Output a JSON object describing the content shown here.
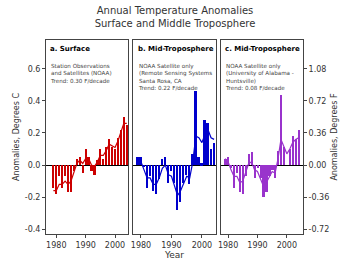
{
  "chart_data": [
    {
      "type": "bar",
      "title": "Annual Temperature Anomalies\nSurface and Middle Troposphere",
      "ylabel": "Anomalies, Degrees C",
      "x": [
        1979,
        1980,
        1981,
        1982,
        1983,
        1984,
        1985,
        1986,
        1987,
        1988,
        1989,
        1990,
        1991,
        1992,
        1993,
        1994,
        1995,
        1996,
        1997,
        1998,
        1999,
        2000,
        2001,
        2002,
        2003,
        2004
      ],
      "xlim": [
        1976.5,
        2004.5
      ],
      "xticks": [
        1980,
        1990,
        2000
      ],
      "ylim": [
        -0.43,
        0.78
      ],
      "yticks": [
        -0.4,
        -0.2,
        {
          "value": 0,
          "label": "0.0"
        },
        0.2,
        0.4,
        0.6
      ],
      "annotations": [
        "a. Surface",
        "Station Observations\nand Satellites (NOAA)\nTrend: 0.30 F/decade"
      ],
      "series": [
        {
          "type": "bar",
          "color": "#cc0000",
          "values": [
            -0.14,
            -0.18,
            -0.07,
            -0.14,
            -0.07,
            -0.17,
            -0.17,
            -0.04,
            0.04,
            0.05,
            -0.05,
            0.1,
            0.05,
            -0.04,
            -0.06,
            0.03,
            0.1,
            0.04,
            0.11,
            0.16,
            0.11,
            0.1,
            0.17,
            0.22,
            0.3,
            0.25
          ]
        },
        {
          "type": "line",
          "color": "#cc0000",
          "values": [
            -0.16,
            -0.16,
            -0.12,
            -0.12,
            -0.1,
            -0.12,
            -0.1,
            -0.05,
            0.01,
            0.03,
            0.01,
            0.04,
            0.04,
            0.0,
            -0.01,
            0.02,
            0.06,
            0.06,
            0.09,
            0.13,
            0.12,
            0.11,
            0.15,
            0.21,
            0.26,
            0.26
          ]
        }
      ]
    },
    {
      "type": "bar",
      "xlabel": "Year",
      "tick_labels": "x",
      "x": [
        1979,
        1980,
        1981,
        1982,
        1983,
        1984,
        1985,
        1986,
        1987,
        1988,
        1989,
        1990,
        1991,
        1992,
        1993,
        1994,
        1995,
        1996,
        1997,
        1998,
        1999,
        2000,
        2001,
        2002,
        2003,
        2004
      ],
      "xlim": [
        1977.5,
        2004.5
      ],
      "xticks": [
        1980,
        1990,
        2000
      ],
      "ylim": [
        -0.43,
        0.78
      ],
      "annotations": [
        "b. Mid-Troposphere",
        "NOAA Satellite only\n(Remote Sensing Systems\nSanta Rosa, CA\nTrend: 0.22 F/decade"
      ],
      "series": [
        {
          "type": "bar",
          "color": "#0000cc",
          "values": [
            0.05,
            0.05,
            -0.01,
            -0.14,
            -0.07,
            -0.16,
            -0.18,
            -0.09,
            0.04,
            0.05,
            -0.11,
            -0.04,
            -0.11,
            -0.28,
            -0.23,
            -0.11,
            -0.06,
            -0.12,
            0.07,
            0.46,
            0.05,
            0.01,
            0.28,
            0.26,
            0.1,
            0.14
          ]
        },
        {
          "type": "line",
          "color": "#0000cc",
          "values": [
            0.04,
            0.02,
            -0.03,
            -0.08,
            -0.08,
            -0.12,
            -0.12,
            -0.08,
            -0.02,
            0.0,
            -0.06,
            -0.07,
            -0.13,
            -0.19,
            -0.16,
            -0.11,
            -0.07,
            -0.08,
            0.02,
            0.18,
            0.17,
            0.14,
            0.19,
            0.22,
            0.17,
            0.16
          ]
        }
      ]
    },
    {
      "type": "bar",
      "tick_labels": "x",
      "x": [
        1979,
        1980,
        1981,
        1982,
        1983,
        1984,
        1985,
        1986,
        1987,
        1988,
        1989,
        1990,
        1991,
        1992,
        1993,
        1994,
        1995,
        1996,
        1997,
        1998,
        1999,
        2000,
        2001,
        2002,
        2003,
        2004
      ],
      "xlim": [
        1977.5,
        2005.5
      ],
      "xticks": [
        1980,
        1990,
        2000
      ],
      "ylim": [
        -0.43,
        0.78
      ],
      "y2label": "Anomalies, Degrees F",
      "y2lim": [
        -0.774,
        1.404
      ],
      "y2ticks": [
        -0.72,
        -0.36,
        {
          "value": 0,
          "label": "0.00"
        },
        0.36,
        0.72,
        1.08
      ],
      "annotations": [
        "c. Mid-Troposphere",
        "NOAA Satellite only\n(University of Alabama -\nHuntsville)\nTrend: 0.08 F/decade"
      ],
      "series": [
        {
          "type": "bar",
          "color": "#9933cc",
          "values": [
            0.04,
            0.05,
            -0.02,
            -0.14,
            -0.05,
            -0.17,
            -0.18,
            -0.07,
            0.07,
            0.08,
            -0.08,
            -0.02,
            -0.08,
            -0.2,
            -0.17,
            -0.07,
            -0.03,
            -0.08,
            0.09,
            0.44,
            0.11,
            0.0,
            0.1,
            0.18,
            0.16,
            0.22
          ]
        },
        {
          "type": "line",
          "color": "#9933cc",
          "values": [
            0.04,
            0.02,
            -0.03,
            -0.07,
            -0.07,
            -0.11,
            -0.1,
            -0.05,
            0.01,
            0.02,
            -0.03,
            -0.04,
            -0.09,
            -0.13,
            -0.11,
            -0.07,
            -0.04,
            -0.05,
            0.04,
            0.16,
            0.12,
            0.07,
            0.1,
            0.14,
            0.16,
            0.17
          ]
        }
      ]
    }
  ]
}
